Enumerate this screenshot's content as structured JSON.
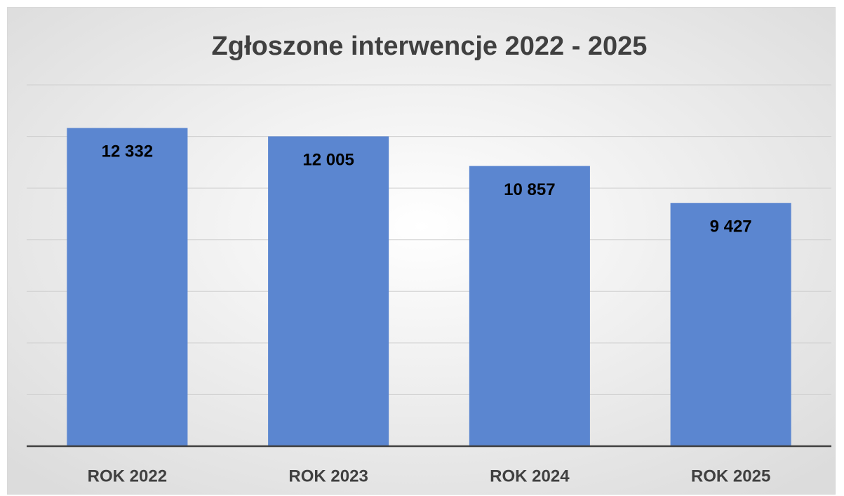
{
  "chart_data": {
    "type": "bar",
    "title": "Zgłoszone interwencje 2022 - 2025",
    "categories": [
      "ROK 2022",
      "ROK 2023",
      "ROK 2024",
      "ROK 2025"
    ],
    "values": [
      12332,
      12005,
      10857,
      9427
    ],
    "value_labels": [
      "12 332",
      "12 005",
      "10 857",
      "9 427"
    ],
    "color": "#5b86d0",
    "ylim": [
      0,
      14000
    ],
    "yticks": [
      0,
      2000,
      4000,
      6000,
      8000,
      10000,
      12000,
      14000
    ],
    "grid": true
  }
}
